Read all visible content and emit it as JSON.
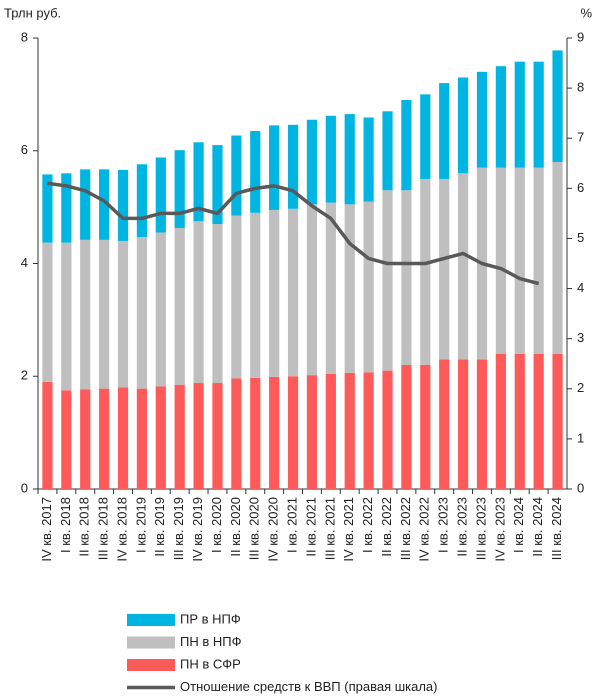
{
  "chart_data": {
    "type": "bar",
    "stacked": true,
    "y_label": "Трлн руб.",
    "y2_label": "%",
    "categories": [
      "IV кв. 2017",
      "I кв. 2018",
      "II кв. 2018",
      "III кв. 2018",
      "IV кв. 2018",
      "I кв. 2019",
      "II кв. 2019",
      "III кв. 2019",
      "IV кв. 2019",
      "I кв. 2020",
      "II кв. 2020",
      "III кв. 2020",
      "IV кв. 2020",
      "I кв. 2021",
      "II кв. 2021",
      "III кв. 2021",
      "IV кв. 2021",
      "I кв. 2022",
      "II кв. 2022",
      "III кв. 2022",
      "IV кв. 2022",
      "I кв. 2023",
      "II кв. 2023",
      "III кв. 2023",
      "IV кв. 2023",
      "I кв. 2024",
      "II кв. 2024",
      "III кв. 2024"
    ],
    "series": [
      {
        "name": "ПН в СФР",
        "color": "#ff5a5a",
        "values": [
          1.9,
          1.75,
          1.77,
          1.78,
          1.8,
          1.78,
          1.82,
          1.85,
          1.88,
          1.88,
          1.96,
          1.97,
          1.99,
          2.0,
          2.02,
          2.04,
          2.06,
          2.07,
          2.1,
          2.2,
          2.2,
          2.3,
          2.3,
          2.3,
          2.4,
          2.4,
          2.4,
          2.4
        ]
      },
      {
        "name": "ПН в НПФ",
        "color": "#bfbfbf",
        "values": [
          2.47,
          2.62,
          2.65,
          2.64,
          2.6,
          2.69,
          2.73,
          2.78,
          2.87,
          2.82,
          2.89,
          2.93,
          2.96,
          2.97,
          3.03,
          3.04,
          2.99,
          3.03,
          3.2,
          3.1,
          3.3,
          3.2,
          3.3,
          3.4,
          3.3,
          3.3,
          3.3,
          3.4
        ]
      },
      {
        "name": "ПР в НПФ",
        "color": "#00b5e2",
        "values": [
          1.21,
          1.23,
          1.25,
          1.25,
          1.26,
          1.29,
          1.33,
          1.38,
          1.4,
          1.4,
          1.42,
          1.45,
          1.5,
          1.49,
          1.5,
          1.54,
          1.6,
          1.49,
          1.4,
          1.6,
          1.5,
          1.7,
          1.7,
          1.7,
          1.8,
          1.88,
          1.88,
          1.98
        ]
      },
      {
        "name": "Отношение средств к ВВП (правая шкала)",
        "type": "line",
        "axis": "y2",
        "color": "#595959",
        "values": [
          6.1,
          6.05,
          5.95,
          5.75,
          5.4,
          5.4,
          5.5,
          5.5,
          5.6,
          5.5,
          5.9,
          6.0,
          6.05,
          5.95,
          5.65,
          5.4,
          4.9,
          4.6,
          4.5,
          4.5,
          4.5,
          4.6,
          4.7,
          4.5,
          4.4,
          4.2,
          4.1,
          null
        ]
      }
    ],
    "ylim": [
      0,
      8
    ],
    "yticks": [
      0,
      2,
      4,
      6,
      8
    ],
    "y2lim": [
      0,
      9
    ],
    "y2ticks": [
      0,
      1,
      2,
      3,
      4,
      5,
      6,
      7,
      8,
      9
    ],
    "grid": false
  }
}
